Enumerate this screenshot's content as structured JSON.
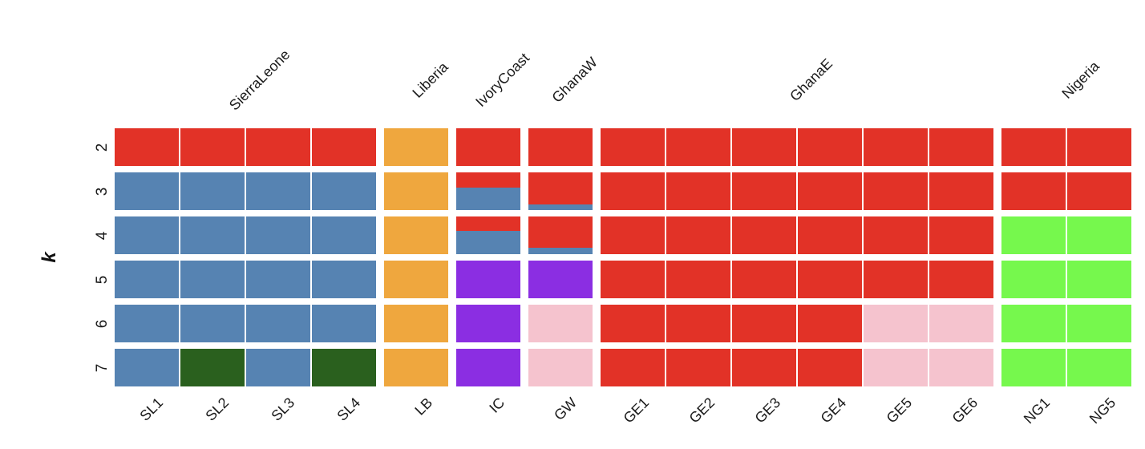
{
  "chart_data": {
    "type": "heatmap",
    "subtype": "admixture-structure-plot",
    "title": "",
    "xlabel": "",
    "ylabel": "k",
    "k_values": [
      2,
      3,
      4,
      5,
      6,
      7
    ],
    "legend": "none",
    "grid": false,
    "palette": {
      "red": "#E23227",
      "blue": "#5683B2",
      "orange": "#EFA73E",
      "purple": "#8B2EE2",
      "pink": "#F5C3CE",
      "green": "#76F84D",
      "darkgreen": "#2A601E"
    },
    "groups": [
      {
        "name": "SierraLeone",
        "columns": [
          "SL1",
          "SL2",
          "SL3",
          "SL4"
        ]
      },
      {
        "name": "Liberia",
        "columns": [
          "LB"
        ]
      },
      {
        "name": "IvoryCoast",
        "columns": [
          "IC"
        ]
      },
      {
        "name": "GhanaW",
        "columns": [
          "GW"
        ]
      },
      {
        "name": "GhanaE",
        "columns": [
          "GE1",
          "GE2",
          "GE3",
          "GE4",
          "GE5",
          "GE6"
        ]
      },
      {
        "name": "Nigeria",
        "columns": [
          "NG1",
          "NG5"
        ]
      }
    ],
    "cells": {
      "SL1": [
        [
          [
            "red",
            1
          ]
        ],
        [
          [
            "blue",
            1
          ]
        ],
        [
          [
            "blue",
            1
          ]
        ],
        [
          [
            "blue",
            1
          ]
        ],
        [
          [
            "blue",
            1
          ]
        ],
        [
          [
            "blue",
            1
          ]
        ]
      ],
      "SL2": [
        [
          [
            "red",
            1
          ]
        ],
        [
          [
            "blue",
            1
          ]
        ],
        [
          [
            "blue",
            1
          ]
        ],
        [
          [
            "blue",
            1
          ]
        ],
        [
          [
            "blue",
            1
          ]
        ],
        [
          [
            "darkgreen",
            1
          ]
        ]
      ],
      "SL3": [
        [
          [
            "red",
            1
          ]
        ],
        [
          [
            "blue",
            1
          ]
        ],
        [
          [
            "blue",
            1
          ]
        ],
        [
          [
            "blue",
            1
          ]
        ],
        [
          [
            "blue",
            1
          ]
        ],
        [
          [
            "blue",
            1
          ]
        ]
      ],
      "SL4": [
        [
          [
            "red",
            1
          ]
        ],
        [
          [
            "blue",
            1
          ]
        ],
        [
          [
            "blue",
            1
          ]
        ],
        [
          [
            "blue",
            1
          ]
        ],
        [
          [
            "blue",
            1
          ]
        ],
        [
          [
            "darkgreen",
            1
          ]
        ]
      ],
      "LB": [
        [
          [
            "orange",
            1
          ]
        ],
        [
          [
            "orange",
            1
          ]
        ],
        [
          [
            "orange",
            1
          ]
        ],
        [
          [
            "orange",
            1
          ]
        ],
        [
          [
            "orange",
            1
          ]
        ],
        [
          [
            "orange",
            1
          ]
        ]
      ],
      "IC": [
        [
          [
            "red",
            1
          ]
        ],
        [
          [
            "red",
            0.4
          ],
          [
            "blue",
            0.6
          ]
        ],
        [
          [
            "red",
            0.38
          ],
          [
            "blue",
            0.62
          ]
        ],
        [
          [
            "purple",
            1
          ]
        ],
        [
          [
            "purple",
            1
          ]
        ],
        [
          [
            "purple",
            1
          ]
        ]
      ],
      "GW": [
        [
          [
            "red",
            1
          ]
        ],
        [
          [
            "red",
            0.86
          ],
          [
            "blue",
            0.14
          ]
        ],
        [
          [
            "red",
            0.83
          ],
          [
            "blue",
            0.17
          ]
        ],
        [
          [
            "purple",
            1
          ]
        ],
        [
          [
            "pink",
            1
          ]
        ],
        [
          [
            "pink",
            1
          ]
        ]
      ],
      "GE1": [
        [
          [
            "red",
            1
          ]
        ],
        [
          [
            "red",
            1
          ]
        ],
        [
          [
            "red",
            1
          ]
        ],
        [
          [
            "red",
            1
          ]
        ],
        [
          [
            "red",
            1
          ]
        ],
        [
          [
            "red",
            1
          ]
        ]
      ],
      "GE2": [
        [
          [
            "red",
            1
          ]
        ],
        [
          [
            "red",
            1
          ]
        ],
        [
          [
            "red",
            1
          ]
        ],
        [
          [
            "red",
            1
          ]
        ],
        [
          [
            "red",
            1
          ]
        ],
        [
          [
            "red",
            1
          ]
        ]
      ],
      "GE3": [
        [
          [
            "red",
            1
          ]
        ],
        [
          [
            "red",
            1
          ]
        ],
        [
          [
            "red",
            1
          ]
        ],
        [
          [
            "red",
            1
          ]
        ],
        [
          [
            "red",
            1
          ]
        ],
        [
          [
            "red",
            1
          ]
        ]
      ],
      "GE4": [
        [
          [
            "red",
            1
          ]
        ],
        [
          [
            "red",
            1
          ]
        ],
        [
          [
            "red",
            1
          ]
        ],
        [
          [
            "red",
            1
          ]
        ],
        [
          [
            "red",
            1
          ]
        ],
        [
          [
            "red",
            1
          ]
        ]
      ],
      "GE5": [
        [
          [
            "red",
            1
          ]
        ],
        [
          [
            "red",
            1
          ]
        ],
        [
          [
            "red",
            1
          ]
        ],
        [
          [
            "red",
            1
          ]
        ],
        [
          [
            "pink",
            1
          ]
        ],
        [
          [
            "pink",
            1
          ]
        ]
      ],
      "GE6": [
        [
          [
            "red",
            1
          ]
        ],
        [
          [
            "red",
            1
          ]
        ],
        [
          [
            "red",
            1
          ]
        ],
        [
          [
            "red",
            1
          ]
        ],
        [
          [
            "pink",
            1
          ]
        ],
        [
          [
            "pink",
            1
          ]
        ]
      ],
      "NG1": [
        [
          [
            "red",
            1
          ]
        ],
        [
          [
            "red",
            1
          ]
        ],
        [
          [
            "green",
            1
          ]
        ],
        [
          [
            "green",
            1
          ]
        ],
        [
          [
            "green",
            1
          ]
        ],
        [
          [
            "green",
            1
          ]
        ]
      ],
      "NG5": [
        [
          [
            "red",
            1
          ]
        ],
        [
          [
            "red",
            1
          ]
        ],
        [
          [
            "green",
            1
          ]
        ],
        [
          [
            "green",
            1
          ]
        ],
        [
          [
            "green",
            1
          ]
        ],
        [
          [
            "green",
            1
          ]
        ]
      ]
    }
  }
}
